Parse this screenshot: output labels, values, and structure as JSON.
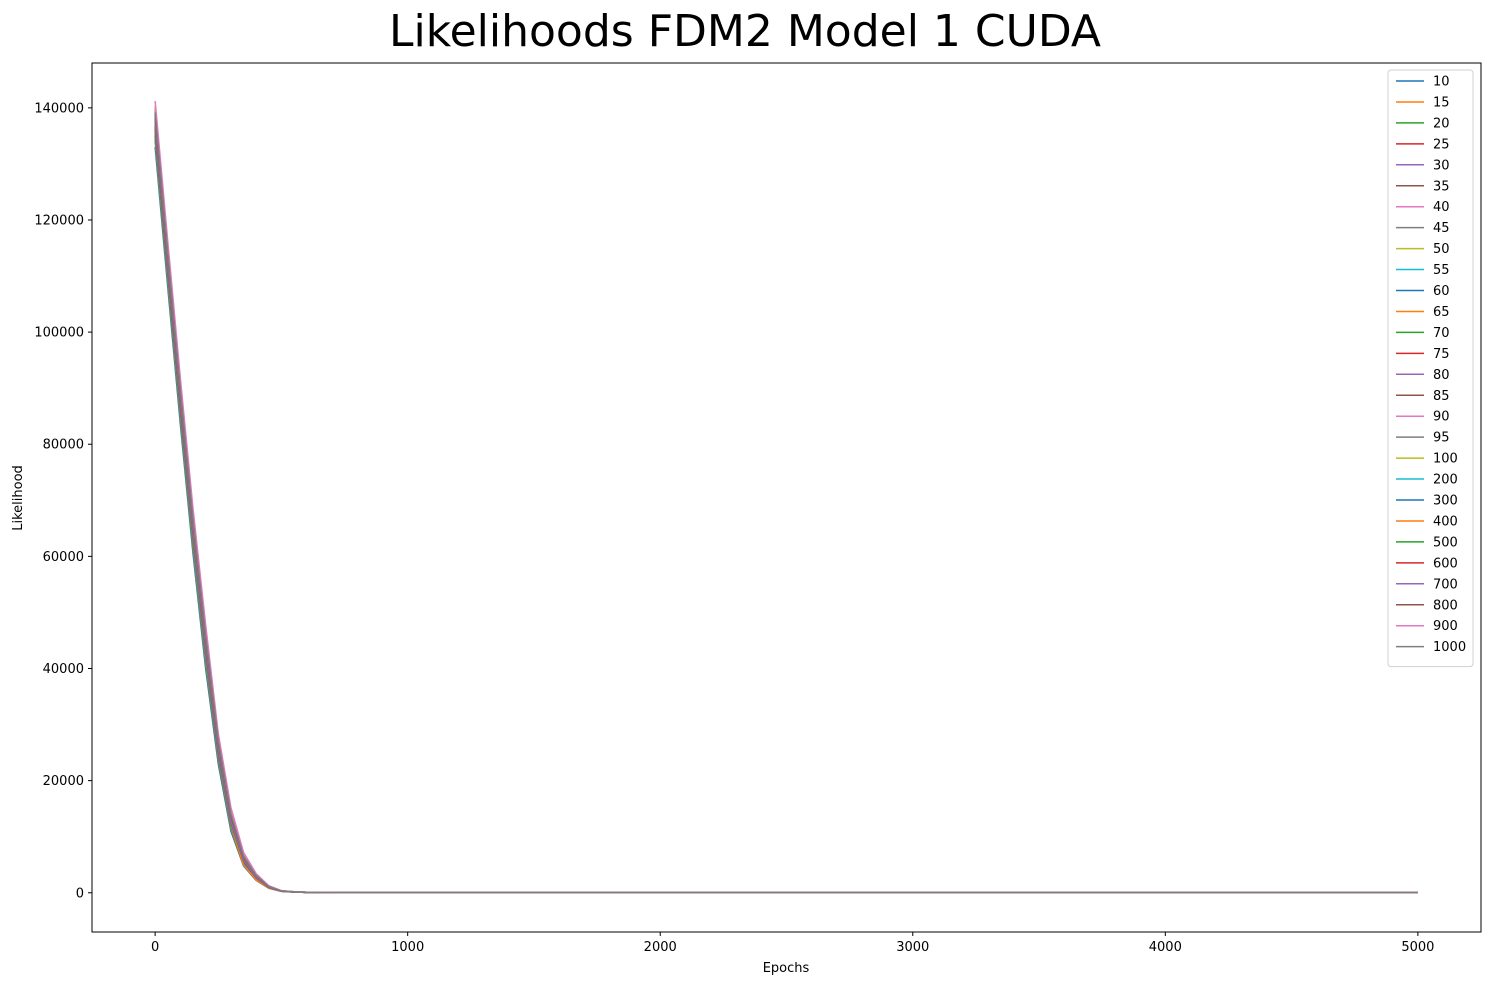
{
  "chart_data": {
    "type": "line",
    "title": "Likelihoods FDM2 Model 1 CUDA",
    "xlabel": "Epochs",
    "ylabel": "Likelihood",
    "xlim": [
      -250,
      5250
    ],
    "ylim": [
      -7000,
      148000
    ],
    "xticks": [
      0,
      1000,
      2000,
      3000,
      4000,
      5000
    ],
    "yticks": [
      0,
      20000,
      40000,
      60000,
      80000,
      100000,
      120000,
      140000
    ],
    "grid": false,
    "legend_position": "top-right",
    "x": [
      0,
      50,
      100,
      150,
      200,
      250,
      300,
      350,
      400,
      450,
      500,
      550,
      600,
      700,
      800,
      1000,
      2000,
      3000,
      4000,
      5000
    ],
    "colors": [
      "#1f77b4",
      "#ff7f0e",
      "#2ca02c",
      "#d62728",
      "#9467bd",
      "#8c564b",
      "#e377c2",
      "#7f7f7f",
      "#bcbd22",
      "#17becf"
    ],
    "series": [
      {
        "name": "10",
        "values": [
          133000,
          108000,
          83500,
          60500,
          40000,
          23000,
          11000,
          4800,
          2200,
          800,
          250,
          120,
          60,
          30,
          20,
          15,
          12,
          10,
          10,
          10
        ]
      },
      {
        "name": "15",
        "values": [
          134000,
          109000,
          84500,
          61500,
          41000,
          23800,
          11500,
          5000,
          2300,
          850,
          260,
          125,
          62,
          32,
          22,
          16,
          13,
          11,
          11,
          11
        ]
      },
      {
        "name": "20",
        "values": [
          134500,
          109500,
          85000,
          62000,
          41500,
          24200,
          11800,
          5200,
          2400,
          880,
          270,
          130,
          64,
          33,
          22,
          16,
          13,
          11,
          11,
          11
        ]
      },
      {
        "name": "25",
        "values": [
          135000,
          110000,
          85500,
          62500,
          42000,
          24500,
          12000,
          5400,
          2500,
          900,
          280,
          135,
          66,
          34,
          23,
          17,
          14,
          12,
          12,
          12
        ]
      },
      {
        "name": "30",
        "values": [
          135500,
          110500,
          86000,
          63000,
          42500,
          24800,
          12200,
          5500,
          2550,
          920,
          285,
          138,
          68,
          35,
          23,
          17,
          14,
          12,
          12,
          12
        ]
      },
      {
        "name": "35",
        "values": [
          136000,
          111000,
          86500,
          63500,
          43000,
          25100,
          12400,
          5600,
          2600,
          940,
          290,
          140,
          70,
          36,
          24,
          18,
          15,
          13,
          13,
          13
        ]
      },
      {
        "name": "40",
        "values": [
          136500,
          111500,
          87000,
          64000,
          43400,
          25400,
          12600,
          5700,
          2650,
          960,
          295,
          142,
          71,
          37,
          24,
          18,
          15,
          13,
          13,
          13
        ]
      },
      {
        "name": "45",
        "values": [
          137000,
          112000,
          87500,
          64400,
          43800,
          25700,
          12800,
          5800,
          2700,
          980,
          300,
          145,
          72,
          38,
          25,
          19,
          16,
          14,
          14,
          14
        ]
      },
      {
        "name": "50",
        "values": [
          137300,
          112300,
          87800,
          64700,
          44100,
          25900,
          12900,
          5900,
          2750,
          1000,
          305,
          148,
          74,
          39,
          25,
          19,
          16,
          14,
          14,
          14
        ]
      },
      {
        "name": "55",
        "values": [
          137600,
          112600,
          88100,
          65000,
          44400,
          26100,
          13000,
          6000,
          2800,
          1020,
          310,
          150,
          75,
          40,
          26,
          20,
          17,
          15,
          15,
          15
        ]
      },
      {
        "name": "60",
        "values": [
          137900,
          112900,
          88400,
          65300,
          44700,
          26300,
          13200,
          6100,
          2850,
          1040,
          315,
          152,
          76,
          40,
          26,
          20,
          17,
          15,
          15,
          15
        ]
      },
      {
        "name": "65",
        "values": [
          138200,
          113200,
          88700,
          65600,
          45000,
          26500,
          13400,
          6200,
          2900,
          1060,
          320,
          155,
          78,
          41,
          27,
          21,
          18,
          16,
          16,
          16
        ]
      },
      {
        "name": "70",
        "values": [
          138500,
          113500,
          89000,
          65900,
          45300,
          26700,
          13600,
          6300,
          2950,
          1080,
          325,
          158,
          79,
          42,
          27,
          21,
          18,
          16,
          16,
          16
        ]
      },
      {
        "name": "75",
        "values": [
          138800,
          113800,
          89300,
          66200,
          45600,
          26900,
          13800,
          6400,
          3000,
          1100,
          330,
          160,
          80,
          43,
          28,
          22,
          19,
          17,
          17,
          17
        ]
      },
      {
        "name": "80",
        "values": [
          139100,
          114100,
          89600,
          66500,
          45900,
          27100,
          14000,
          6500,
          3050,
          1120,
          335,
          162,
          82,
          44,
          28,
          22,
          19,
          17,
          17,
          17
        ]
      },
      {
        "name": "85",
        "values": [
          139400,
          114400,
          89900,
          66800,
          46200,
          27300,
          14200,
          6600,
          3100,
          1140,
          340,
          165,
          83,
          45,
          29,
          23,
          20,
          18,
          18,
          18
        ]
      },
      {
        "name": "90",
        "values": [
          139700,
          114700,
          90200,
          67100,
          46500,
          27500,
          14400,
          6700,
          3150,
          1160,
          345,
          168,
          84,
          46,
          29,
          23,
          20,
          18,
          18,
          18
        ]
      },
      {
        "name": "95",
        "values": [
          140000,
          115000,
          90500,
          67400,
          46800,
          27700,
          14600,
          6800,
          3200,
          1180,
          350,
          170,
          86,
          47,
          30,
          24,
          21,
          19,
          19,
          19
        ]
      },
      {
        "name": "100",
        "values": [
          140300,
          115300,
          90800,
          67700,
          47100,
          27900,
          14800,
          6900,
          3250,
          1200,
          355,
          172,
          87,
          48,
          30,
          24,
          21,
          19,
          19,
          19
        ]
      },
      {
        "name": "200",
        "values": [
          134800,
          109800,
          85300,
          62300,
          41800,
          24400,
          11900,
          5300,
          2450,
          890,
          275,
          132,
          65,
          33,
          22,
          16,
          13,
          11,
          11,
          11
        ]
      },
      {
        "name": "300",
        "values": [
          135200,
          110200,
          85700,
          62700,
          42200,
          24600,
          12100,
          5450,
          2520,
          910,
          282,
          136,
          67,
          34,
          23,
          17,
          14,
          12,
          12,
          12
        ]
      },
      {
        "name": "400",
        "values": [
          135800,
          110800,
          86300,
          63300,
          42800,
          25000,
          12300,
          5000,
          2300,
          860,
          288,
          139,
          69,
          35,
          23,
          17,
          14,
          12,
          12,
          12
        ]
      },
      {
        "name": "500",
        "values": [
          136200,
          111200,
          86700,
          63700,
          43200,
          25200,
          12500,
          5650,
          2620,
          950,
          292,
          141,
          70,
          36,
          24,
          18,
          15,
          13,
          13,
          13
        ]
      },
      {
        "name": "600",
        "values": [
          136700,
          111700,
          87200,
          64200,
          43600,
          25500,
          12700,
          5750,
          2680,
          970,
          298,
          144,
          72,
          37,
          24,
          18,
          15,
          13,
          13,
          13
        ]
      },
      {
        "name": "700",
        "values": [
          137200,
          112200,
          87700,
          64600,
          44000,
          25800,
          12850,
          5850,
          2720,
          990,
          302,
          146,
          73,
          38,
          25,
          19,
          16,
          14,
          14,
          14
        ]
      },
      {
        "name": "800",
        "values": [
          138600,
          113600,
          89100,
          66000,
          45400,
          26800,
          13700,
          6350,
          2980,
          1090,
          328,
          159,
          79,
          42,
          27,
          21,
          18,
          16,
          16,
          16
        ]
      },
      {
        "name": "900",
        "values": [
          141200,
          116200,
          91700,
          68500,
          47800,
          28400,
          15200,
          7200,
          3400,
          1250,
          370,
          180,
          90,
          50,
          31,
          25,
          22,
          20,
          20,
          20
        ]
      },
      {
        "name": "1000",
        "values": [
          139200,
          114200,
          89700,
          66600,
          46000,
          27200,
          14100,
          6550,
          3080,
          1130,
          338,
          164,
          82,
          44,
          28,
          22,
          19,
          17,
          17,
          17
        ]
      }
    ]
  }
}
